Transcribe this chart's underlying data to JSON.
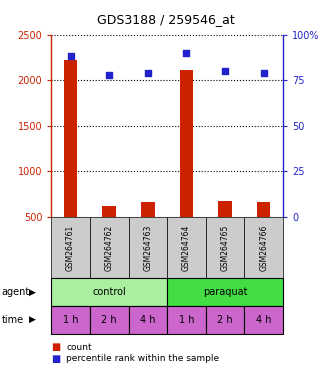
{
  "title": "GDS3188 / 259546_at",
  "samples": [
    "GSM264761",
    "GSM264762",
    "GSM264763",
    "GSM264764",
    "GSM264765",
    "GSM264766"
  ],
  "counts": [
    2220,
    620,
    660,
    2110,
    680,
    660
  ],
  "percentile_ranks": [
    88,
    78,
    79,
    90,
    80,
    79
  ],
  "agent_labels": [
    "control",
    "paraquat"
  ],
  "agent_color_control": "#aaeea0",
  "agent_color_paraquat": "#44dd44",
  "time_labels": [
    "1 h",
    "2 h",
    "4 h",
    "1 h",
    "2 h",
    "4 h"
  ],
  "time_color": "#cc66cc",
  "bar_color": "#cc2200",
  "dot_color": "#2222cc",
  "ylim_left": [
    500,
    2500
  ],
  "ylim_right": [
    0,
    100
  ],
  "yticks_left": [
    500,
    1000,
    1500,
    2000,
    2500
  ],
  "yticks_right": [
    0,
    25,
    50,
    75,
    100
  ],
  "sample_box_color": "#cccccc",
  "title_fontsize": 9,
  "tick_fontsize": 7,
  "label_fontsize": 7,
  "sample_fontsize": 5.5
}
